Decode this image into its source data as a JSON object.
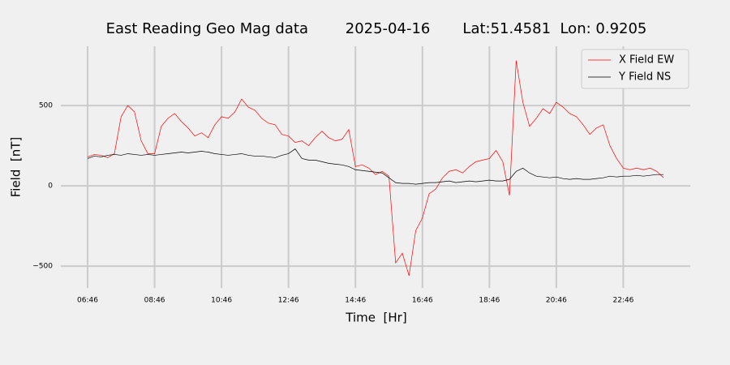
{
  "chart_data": {
    "type": "line",
    "title": "East Reading Geo Mag data        2025-04-16       Lat:51.4581  Lon: 0.9205",
    "xlabel": "Time  [Hr]",
    "ylabel": "Field  [nT]",
    "x": [
      406,
      418,
      430,
      442,
      454,
      466,
      478,
      490,
      502,
      514,
      526,
      538,
      550,
      562,
      574,
      586,
      598,
      610,
      622,
      634,
      646,
      658,
      670,
      682,
      694,
      706,
      718,
      730,
      742,
      754,
      766,
      778,
      790,
      802,
      814,
      826,
      838,
      850,
      862,
      874,
      886,
      898,
      910,
      922,
      934,
      946,
      958,
      970,
      982,
      994,
      1006,
      1018,
      1030,
      1042,
      1054,
      1066,
      1078,
      1090,
      1102,
      1114,
      1126,
      1138,
      1150,
      1162,
      1174,
      1186,
      1198,
      1210,
      1222,
      1234,
      1246,
      1258,
      1270,
      1282,
      1294,
      1306,
      1318,
      1330,
      1342,
      1354,
      1366,
      1378,
      1390,
      1402,
      1414,
      1426,
      1438
    ],
    "series": [
      {
        "name": "X Field EW",
        "color": "#ff0000",
        "values": [
          180,
          195,
          190,
          175,
          200,
          430,
          500,
          460,
          280,
          200,
          200,
          370,
          420,
          450,
          400,
          360,
          310,
          330,
          300,
          380,
          430,
          420,
          460,
          540,
          490,
          470,
          420,
          390,
          380,
          320,
          310,
          270,
          280,
          250,
          300,
          340,
          300,
          280,
          290,
          350,
          120,
          130,
          110,
          70,
          90,
          60,
          -480,
          -420,
          -560,
          -280,
          -200,
          -50,
          -20,
          50,
          90,
          100,
          80,
          120,
          150,
          160,
          170,
          220,
          150,
          -60,
          780,
          520,
          370,
          420,
          480,
          450,
          520,
          490,
          450,
          430,
          380,
          320,
          360,
          380,
          250,
          170,
          110,
          100,
          110,
          100,
          110,
          90,
          50
        ]
      },
      {
        "name": "Y Field NS",
        "color": "#000000",
        "values": [
          170,
          185,
          180,
          190,
          195,
          190,
          200,
          195,
          190,
          195,
          190,
          195,
          200,
          205,
          210,
          205,
          210,
          215,
          210,
          200,
          195,
          190,
          195,
          200,
          190,
          185,
          185,
          180,
          175,
          190,
          200,
          230,
          170,
          160,
          160,
          150,
          140,
          135,
          130,
          120,
          100,
          95,
          90,
          85,
          80,
          50,
          20,
          15,
          15,
          10,
          15,
          20,
          20,
          25,
          30,
          20,
          25,
          30,
          25,
          30,
          35,
          30,
          30,
          40,
          90,
          110,
          80,
          60,
          55,
          50,
          55,
          45,
          40,
          45,
          40,
          40,
          45,
          50,
          60,
          55,
          60,
          60,
          65,
          60,
          65,
          70,
          70
        ]
      }
    ],
    "xlim": [
      358,
      1486
    ],
    "xticks": [
      {
        "value": 406,
        "label": "06:46"
      },
      {
        "value": 526,
        "label": "08:46"
      },
      {
        "value": 646,
        "label": "10:46"
      },
      {
        "value": 766,
        "label": "12:46"
      },
      {
        "value": 886,
        "label": "14:46"
      },
      {
        "value": 1006,
        "label": "16:46"
      },
      {
        "value": 1126,
        "label": "18:46"
      },
      {
        "value": 1246,
        "label": "20:46"
      },
      {
        "value": 1366,
        "label": "22:46"
      }
    ],
    "ylim": [
      -636,
      869
    ],
    "yticks": [
      {
        "value": -500,
        "label": "−500"
      },
      0,
      500
    ],
    "grid": true,
    "legend": "upper right"
  }
}
